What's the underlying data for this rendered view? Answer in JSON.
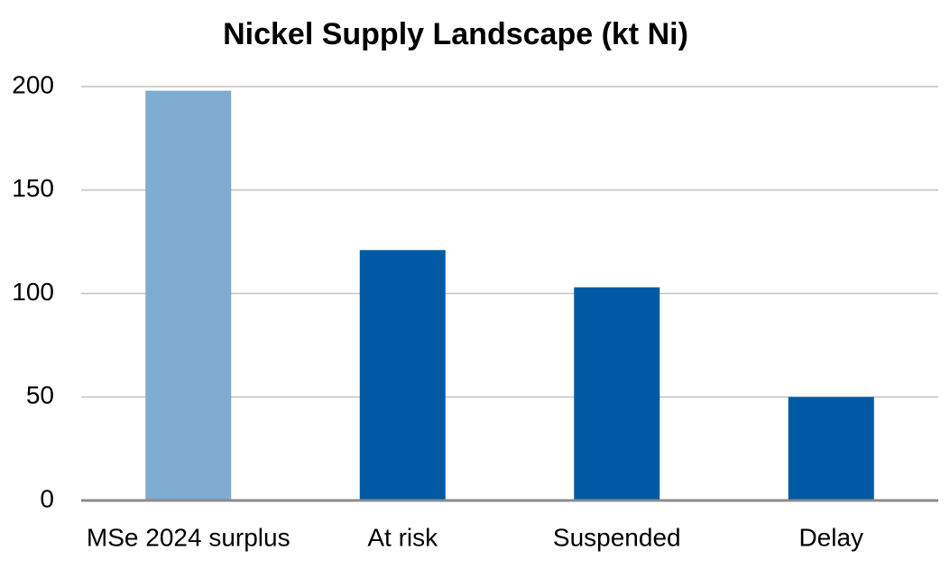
{
  "chart_data": {
    "type": "bar",
    "title": "Nickel Supply Landscape (kt Ni)",
    "categories": [
      "MSe 2024 surplus",
      "At risk",
      "Suspended",
      "Delay"
    ],
    "values": [
      198,
      121,
      103,
      50
    ],
    "colors": [
      "#7fabd1",
      "#005aa3",
      "#005aa3",
      "#005aa3"
    ],
    "ylim": [
      0,
      200
    ],
    "yticks": [
      0,
      50,
      100,
      150,
      200
    ],
    "grid": true
  }
}
